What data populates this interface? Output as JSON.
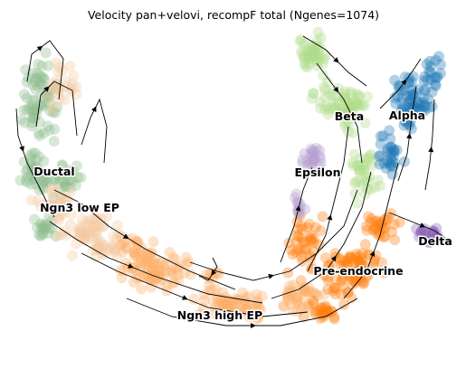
{
  "chart_data": {
    "type": "scatter",
    "title": "Velocity pan+velovi, recompF total (Ngenes=1074)",
    "xlabel": "",
    "ylabel": "",
    "grid": false,
    "axes_visible": false,
    "overlay": "velocity streamlines with arrowheads",
    "clusters": [
      {
        "name": "Ductal",
        "color": "#8fbc8f"
      },
      {
        "name": "Ngn3 low EP",
        "color": "#f4c9a0"
      },
      {
        "name": "Ngn3 high EP",
        "color": "#fdb06b"
      },
      {
        "name": "Pre-endocrine",
        "color": "#ff7f0e"
      },
      {
        "name": "Beta",
        "color": "#aedc8a"
      },
      {
        "name": "Alpha",
        "color": "#1f77b4"
      },
      {
        "name": "Epsilon",
        "color": "#b59fcf"
      },
      {
        "name": "Delta",
        "color": "#8a63b4"
      }
    ]
  }
}
